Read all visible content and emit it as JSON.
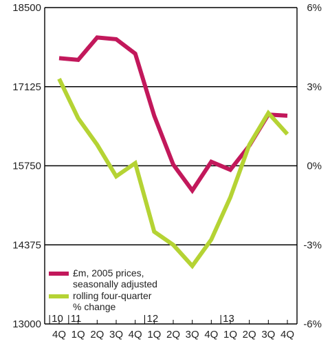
{
  "chart_data": {
    "type": "line",
    "categories": [
      "4Q",
      "1Q",
      "2Q",
      "3Q",
      "4Q",
      "1Q",
      "2Q",
      "3Q",
      "4Q",
      "1Q",
      "2Q",
      "3Q",
      "4Q"
    ],
    "year_labels": [
      {
        "label": "10",
        "index": 0
      },
      {
        "label": "11",
        "index": 1
      },
      {
        "label": "12",
        "index": 5
      },
      {
        "label": "13",
        "index": 9
      }
    ],
    "left_axis": {
      "ticks": [
        "18500",
        "17125",
        "15750",
        "14375",
        "13000"
      ],
      "ylim": [
        13000,
        18500
      ]
    },
    "right_axis": {
      "ticks": [
        "6%",
        "3%",
        "0%",
        "-3%",
        "-6%"
      ],
      "ylim": [
        -6,
        6
      ]
    },
    "series": [
      {
        "name": "£m, 2005 prices, seasonally adjusted",
        "axis": "left",
        "color": "#c2185b",
        "values": [
          17620,
          17590,
          17980,
          17950,
          17700,
          16620,
          15770,
          15320,
          15820,
          15680,
          16100,
          16640,
          16620
        ]
      },
      {
        "name": "rolling four-quarter % change",
        "axis": "right",
        "color": "#b5d334",
        "values": [
          3.3,
          1.8,
          0.8,
          -0.4,
          0.1,
          -2.5,
          -3.0,
          -3.8,
          -2.8,
          -1.2,
          0.8,
          2.0,
          1.2
        ]
      }
    ],
    "legend": {
      "position": "bottom-left",
      "line1": [
        "£m, 2005 prices,",
        "seasonally adjusted"
      ],
      "line2": [
        "rolling four-quarter",
        "% change"
      ]
    },
    "grid": true
  }
}
